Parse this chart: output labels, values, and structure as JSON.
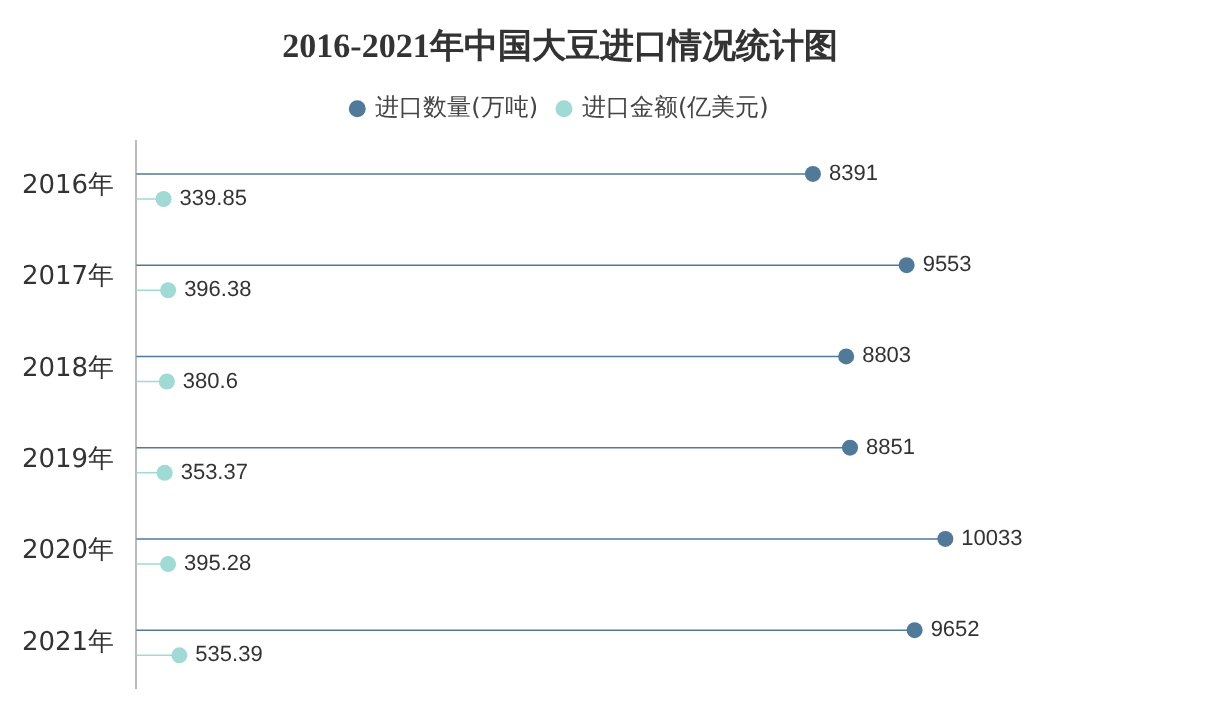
{
  "chart_data": {
    "type": "lollipop",
    "title": "2016-2021年中国大豆进口情况统计图",
    "orientation": "horizontal",
    "categories": [
      "2016年",
      "2017年",
      "2018年",
      "2019年",
      "2020年",
      "2021年"
    ],
    "series": [
      {
        "name": "进口数量(万吨)",
        "color": "#50799a",
        "values": [
          8391,
          9553,
          8803,
          8851,
          10033,
          9652
        ]
      },
      {
        "name": "进口金额(亿美元)",
        "color": "#9fdad4",
        "values": [
          339.85,
          396.38,
          380.6,
          353.37,
          395.28,
          535.39
        ]
      }
    ],
    "data_labels": true,
    "legend": "top",
    "marker": "circle"
  }
}
